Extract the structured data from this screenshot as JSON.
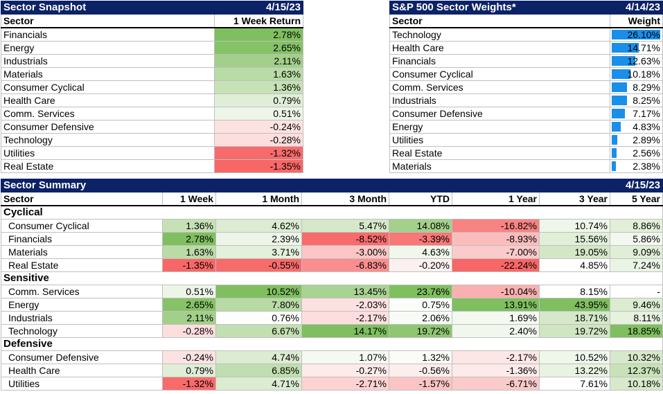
{
  "snapshot": {
    "title": "Sector Snapshot",
    "date": "4/15/23",
    "headers": [
      "Sector",
      "1 Week Return"
    ],
    "rows": [
      {
        "sector": "Financials",
        "value": "2.78%",
        "bg": "#7fbf5f"
      },
      {
        "sector": "Energy",
        "value": "2.65%",
        "bg": "#86c267"
      },
      {
        "sector": "Industrials",
        "value": "2.11%",
        "bg": "#a2d08a"
      },
      {
        "sector": "Materials",
        "value": "1.63%",
        "bg": "#b9dba6"
      },
      {
        "sector": "Consumer Cyclical",
        "value": "1.36%",
        "bg": "#c6e1b6"
      },
      {
        "sector": "Health Care",
        "value": "0.79%",
        "bg": "#e0eed8"
      },
      {
        "sector": "Comm. Services",
        "value": "0.51%",
        "bg": "#edf5e8"
      },
      {
        "sector": "Consumer Defensive",
        "value": "-0.24%",
        "bg": "#fde2e2"
      },
      {
        "sector": "Technology",
        "value": "-0.28%",
        "bg": "#fddede"
      },
      {
        "sector": "Utilities",
        "value": "-1.32%",
        "bg": "#f86b6b"
      },
      {
        "sector": "Real Estate",
        "value": "-1.35%",
        "bg": "#f86767"
      }
    ]
  },
  "weights": {
    "title": "S&P 500 Sector Weights*",
    "date": "4/14/23",
    "headers": [
      "Sector",
      "Weight"
    ],
    "rows": [
      {
        "sector": "Technology",
        "value": "26.10%",
        "pct": 26.1
      },
      {
        "sector": "Health Care",
        "value": "14.71%",
        "pct": 14.71
      },
      {
        "sector": "Financials",
        "value": "12.63%",
        "pct": 12.63
      },
      {
        "sector": "Consumer Cyclical",
        "value": "10.18%",
        "pct": 10.18
      },
      {
        "sector": "Comm. Services",
        "value": "8.29%",
        "pct": 8.29
      },
      {
        "sector": "Industrials",
        "value": "8.25%",
        "pct": 8.25
      },
      {
        "sector": "Consumer Defensive",
        "value": "7.17%",
        "pct": 7.17
      },
      {
        "sector": "Energy",
        "value": "4.83%",
        "pct": 4.83
      },
      {
        "sector": "Utilities",
        "value": "2.89%",
        "pct": 2.89
      },
      {
        "sector": "Real Estate",
        "value": "2.56%",
        "pct": 2.56
      },
      {
        "sector": "Materials",
        "value": "2.38%",
        "pct": 2.38
      }
    ],
    "bar_color": "#1a8fea"
  },
  "summary": {
    "title": "Sector Summary",
    "date": "4/15/23",
    "headers": [
      "Sector",
      "1 Week",
      "1 Month",
      "3 Month",
      "YTD",
      "1 Year",
      "3 Year",
      "5 Year"
    ],
    "groups": [
      {
        "name": "Cyclical",
        "rows": [
          {
            "sector": "Consumer Cyclical",
            "cells": [
              {
                "v": "1.36%",
                "bg": "#c6e1b6"
              },
              {
                "v": "4.62%",
                "bg": "#dcecd2"
              },
              {
                "v": "5.47%",
                "bg": "#d5e8c9"
              },
              {
                "v": "14.08%",
                "bg": "#a3d08b"
              },
              {
                "v": "-16.82%",
                "bg": "#f88383"
              },
              {
                "v": "10.74%",
                "bg": "#eef6e9"
              },
              {
                "v": "8.86%",
                "bg": "#e1efd8"
              }
            ]
          },
          {
            "sector": "Financials",
            "cells": [
              {
                "v": "2.78%",
                "bg": "#7fbf5f"
              },
              {
                "v": "2.39%",
                "bg": "#edf5e8"
              },
              {
                "v": "-8.52%",
                "bg": "#f86b6b"
              },
              {
                "v": "-3.39%",
                "bg": "#f87777"
              },
              {
                "v": "-8.93%",
                "bg": "#fbbcbc"
              },
              {
                "v": "15.56%",
                "bg": "#e1efd8"
              },
              {
                "v": "5.86%",
                "bg": "#f3f8ef"
              }
            ]
          },
          {
            "sector": "Materials",
            "cells": [
              {
                "v": "1.63%",
                "bg": "#b9dba6"
              },
              {
                "v": "3.71%",
                "bg": "#e3f0db"
              },
              {
                "v": "-3.00%",
                "bg": "#fcc6c6"
              },
              {
                "v": "4.63%",
                "bg": "#f1f7ec"
              },
              {
                "v": "-7.00%",
                "bg": "#fbcaca"
              },
              {
                "v": "19.05%",
                "bg": "#d3e7c6"
              },
              {
                "v": "9.09%",
                "bg": "#dfeed6"
              }
            ]
          },
          {
            "sector": "Real Estate",
            "cells": [
              {
                "v": "-1.35%",
                "bg": "#f86767"
              },
              {
                "v": "-0.55%",
                "bg": "#f86b6b"
              },
              {
                "v": "-6.83%",
                "bg": "#fa8e8e"
              },
              {
                "v": "-0.20%",
                "bg": "#fdf0f0"
              },
              {
                "v": "-22.24%",
                "bg": "#f86767"
              },
              {
                "v": "4.85%",
                "bg": "#ffffff"
              },
              {
                "v": "7.24%",
                "bg": "#eaf4e4"
              }
            ]
          }
        ]
      },
      {
        "name": "Sensitive",
        "rows": [
          {
            "sector": "Comm. Services",
            "cells": [
              {
                "v": "0.51%",
                "bg": "#edf5e8"
              },
              {
                "v": "10.52%",
                "bg": "#7fbf5f"
              },
              {
                "v": "13.45%",
                "bg": "#a9d392"
              },
              {
                "v": "23.76%",
                "bg": "#7fbf5f"
              },
              {
                "v": "-10.04%",
                "bg": "#fab0b0"
              },
              {
                "v": "8.15%",
                "bg": "#ffffff"
              },
              {
                "v": "-",
                "bg": "#ffffff"
              }
            ]
          },
          {
            "sector": "Energy",
            "cells": [
              {
                "v": "2.65%",
                "bg": "#86c267"
              },
              {
                "v": "7.80%",
                "bg": "#b8dba5"
              },
              {
                "v": "-2.03%",
                "bg": "#fde0e0"
              },
              {
                "v": "0.75%",
                "bg": "#fbfdfa"
              },
              {
                "v": "13.91%",
                "bg": "#7fbf5f"
              },
              {
                "v": "43.95%",
                "bg": "#7fbf5f"
              },
              {
                "v": "9.46%",
                "bg": "#dbecd1"
              }
            ]
          },
          {
            "sector": "Industrials",
            "cells": [
              {
                "v": "2.11%",
                "bg": "#a2d08a"
              },
              {
                "v": "0.76%",
                "bg": "#fdfefc"
              },
              {
                "v": "-2.17%",
                "bg": "#fddede"
              },
              {
                "v": "2.06%",
                "bg": "#f8fbf6"
              },
              {
                "v": "1.69%",
                "bg": "#f4f9f1"
              },
              {
                "v": "18.71%",
                "bg": "#d5e8c9"
              },
              {
                "v": "8.11%",
                "bg": "#e6f1de"
              }
            ]
          },
          {
            "sector": "Technology",
            "cells": [
              {
                "v": "-0.28%",
                "bg": "#fddede"
              },
              {
                "v": "6.67%",
                "bg": "#c2dfb1"
              },
              {
                "v": "14.17%",
                "bg": "#7fbf5f"
              },
              {
                "v": "19.72%",
                "bg": "#8fc672"
              },
              {
                "v": "2.40%",
                "bg": "#f1f7ec"
              },
              {
                "v": "19.72%",
                "bg": "#d0e5c2"
              },
              {
                "v": "18.85%",
                "bg": "#7fbf5f"
              }
            ]
          }
        ]
      },
      {
        "name": "Defensive",
        "rows": [
          {
            "sector": "Consumer Defensive",
            "cells": [
              {
                "v": "-0.24%",
                "bg": "#fde2e2"
              },
              {
                "v": "4.74%",
                "bg": "#dbecd1"
              },
              {
                "v": "1.07%",
                "bg": "#f4f9f1"
              },
              {
                "v": "1.32%",
                "bg": "#f9fcf7"
              },
              {
                "v": "-2.17%",
                "bg": "#fde6e6"
              },
              {
                "v": "10.52%",
                "bg": "#eff6ea"
              },
              {
                "v": "10.32%",
                "bg": "#d6e9ca"
              }
            ]
          },
          {
            "sector": "Health Care",
            "cells": [
              {
                "v": "0.79%",
                "bg": "#e0eed8"
              },
              {
                "v": "6.85%",
                "bg": "#c0deaf"
              },
              {
                "v": "-0.27%",
                "bg": "#fdeaea"
              },
              {
                "v": "-0.56%",
                "bg": "#fdeeee"
              },
              {
                "v": "-1.36%",
                "bg": "#fdeaea"
              },
              {
                "v": "13.22%",
                "bg": "#e8f3e1"
              },
              {
                "v": "12.37%",
                "bg": "#c8e2b8"
              }
            ]
          },
          {
            "sector": "Utilities",
            "cells": [
              {
                "v": "-1.32%",
                "bg": "#f86b6b"
              },
              {
                "v": "4.71%",
                "bg": "#dbecd1"
              },
              {
                "v": "-2.71%",
                "bg": "#fcd2d2"
              },
              {
                "v": "-1.57%",
                "bg": "#fbc4c4"
              },
              {
                "v": "-6.71%",
                "bg": "#fbcaca"
              },
              {
                "v": "7.61%",
                "bg": "#ffffff"
              },
              {
                "v": "10.18%",
                "bg": "#d7e9cb"
              }
            ]
          }
        ]
      }
    ]
  }
}
